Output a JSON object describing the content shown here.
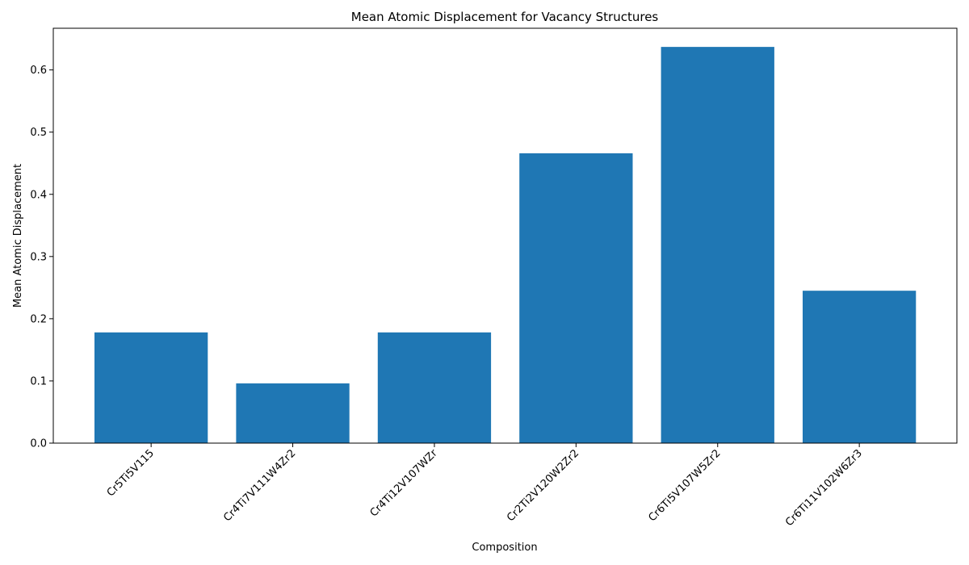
{
  "chart_data": {
    "type": "bar",
    "title": "Mean Atomic Displacement for Vacancy Structures",
    "xlabel": "Composition",
    "ylabel": "Mean Atomic Displacement",
    "categories": [
      "Cr5Ti5V115",
      "Cr4Ti7V111W4Zr2",
      "Cr4Ti12V107WZr",
      "Cr2Ti2V120W2Zr2",
      "Cr6Ti5V107W5Zr2",
      "Cr6Ti11V102W6Zr3"
    ],
    "values": [
      0.178,
      0.096,
      0.178,
      0.466,
      0.637,
      0.245
    ],
    "ylim": [
      0,
      0.667
    ],
    "yticks": [
      0.0,
      0.1,
      0.2,
      0.3,
      0.4,
      0.5,
      0.6
    ],
    "ytick_labels": [
      "0.0",
      "0.1",
      "0.2",
      "0.3",
      "0.4",
      "0.5",
      "0.6"
    ],
    "grid": false,
    "legend": "none",
    "colors": {
      "bar": "#1f77b4"
    }
  }
}
